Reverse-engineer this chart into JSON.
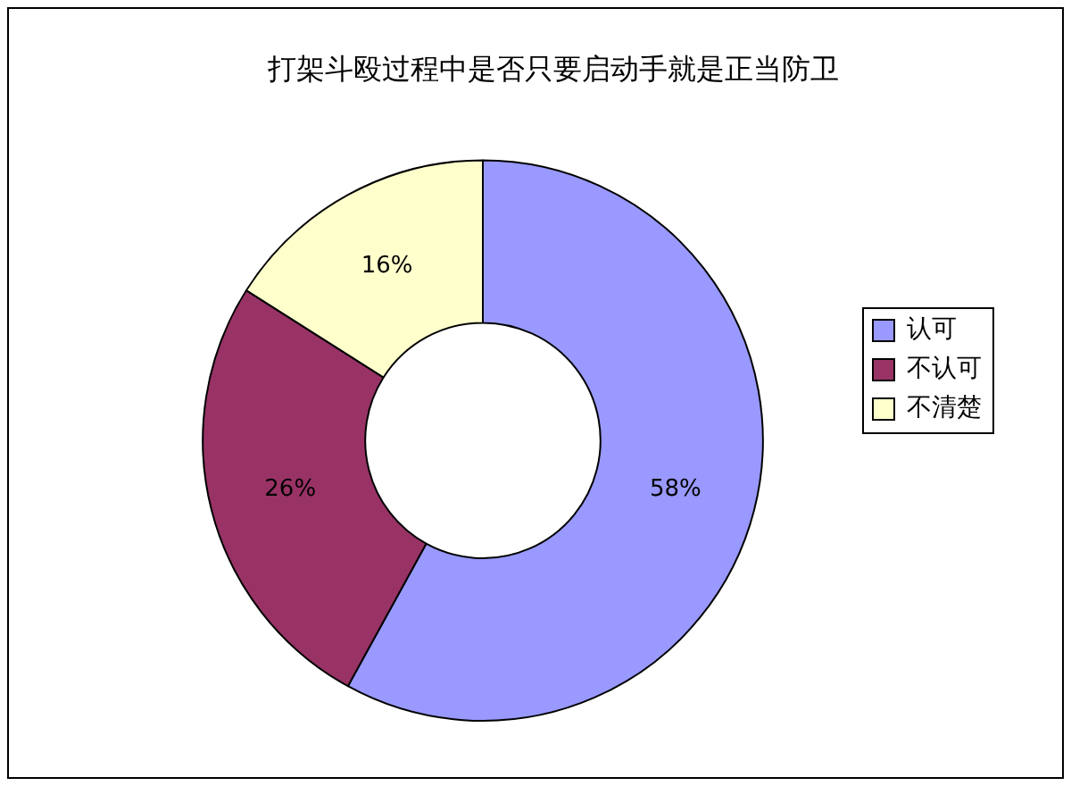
{
  "chart_data": {
    "type": "donut",
    "title": "打架斗殴过程中是否只要启动手就是正当防卫",
    "categories": [
      "认可",
      "不认可",
      "不清楚"
    ],
    "values": [
      58,
      26,
      16
    ],
    "value_labels": [
      "58%",
      "26%",
      "16%"
    ],
    "colors": [
      "#9999ff",
      "#993366",
      "#ffffcc"
    ],
    "legend": "right"
  }
}
